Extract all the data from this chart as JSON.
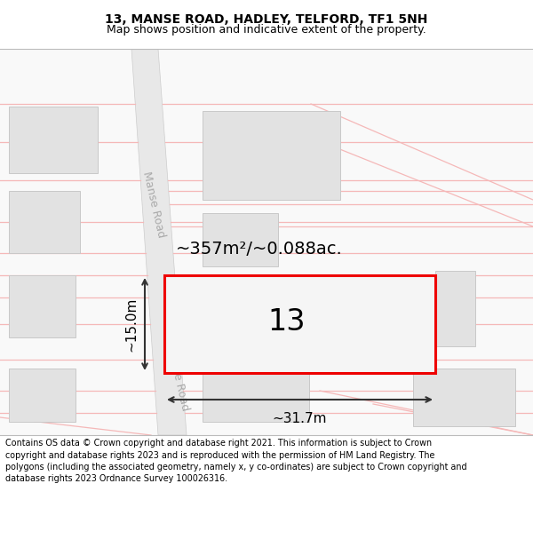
{
  "title": "13, MANSE ROAD, HADLEY, TELFORD, TF1 5NH",
  "subtitle": "Map shows position and indicative extent of the property.",
  "footer": "Contains OS data © Crown copyright and database right 2021. This information is subject to Crown copyright and database rights 2023 and is reproduced with the permission of HM Land Registry. The polygons (including the associated geometry, namely x, y co-ordinates) are subject to Crown copyright and database rights 2023 Ordnance Survey 100026316.",
  "bg_color": "#ffffff",
  "road_color": "#e8e8e8",
  "road_stripe_color": "#f5b8b8",
  "building_fill": "#e2e2e2",
  "building_edge": "#c8c8c8",
  "highlight_edge": "#ee0000",
  "highlight_label": "13",
  "area_label": "~357m²/~0.088ac.",
  "width_label": "~31.7m",
  "height_label": "~15.0m",
  "road_text_color": "#aaaaaa",
  "title_fontsize": 10,
  "subtitle_fontsize": 9
}
